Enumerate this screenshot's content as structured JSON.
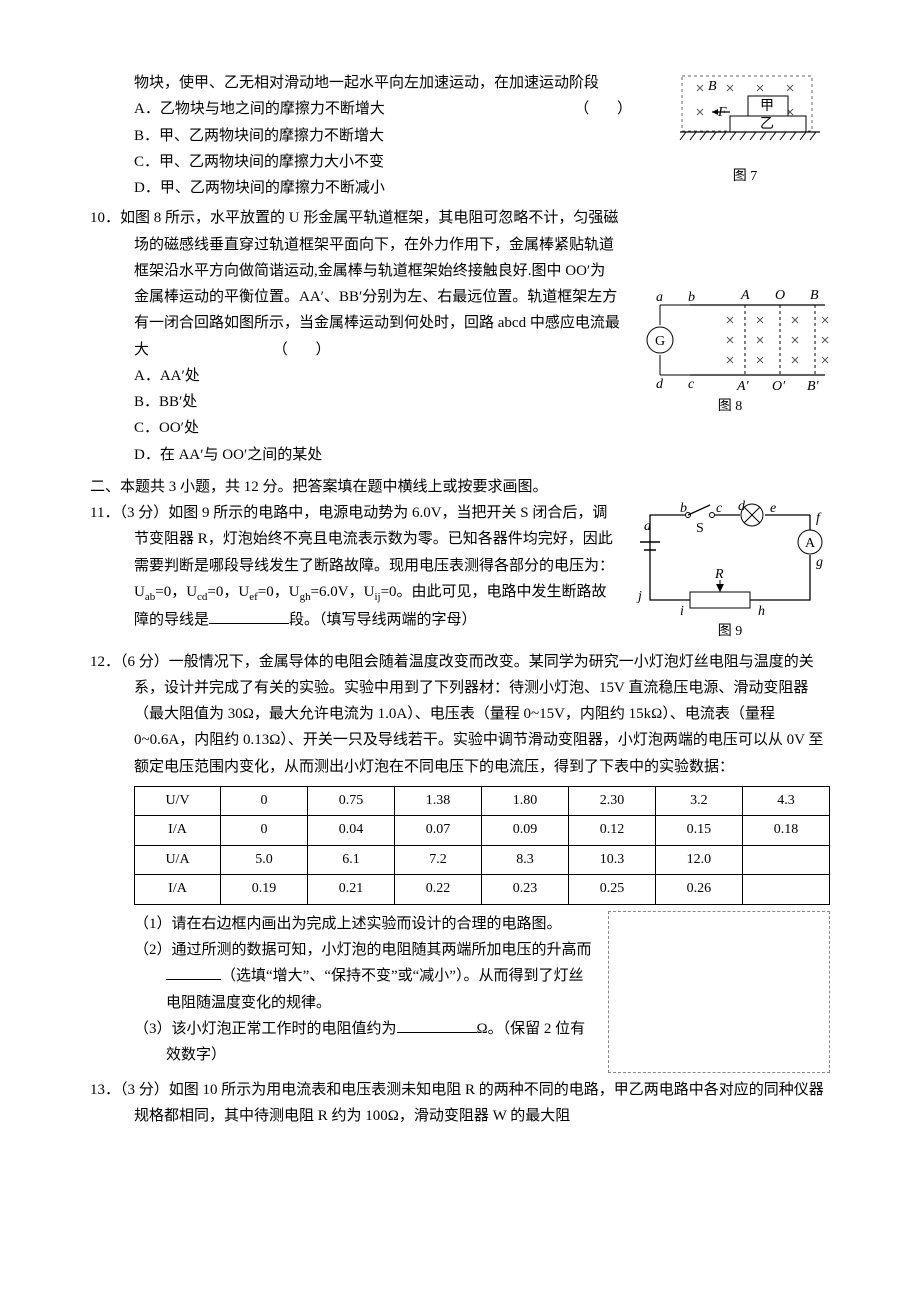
{
  "q9": {
    "cont": "物块，使甲、乙无相对滑动地一起水平向左加速运动，在加速运动阶段",
    "opts": {
      "A": "A．乙物块与地之间的摩擦力不断增大",
      "B": "B．甲、乙两物块间的摩擦力不断增大",
      "C": "C．甲、乙两物块间的摩擦力大小不变",
      "D": "D．甲、乙两物块间的摩擦力不断减小"
    },
    "fig": {
      "caption": "图 7",
      "labels": {
        "B": "B",
        "F": "F",
        "jia": "甲",
        "yi": "乙"
      }
    }
  },
  "q10": {
    "num": "10．",
    "body1": "如图 8 所示，水平放置的 U 形金属平轨道框架，其电阻可忽略不计，匀强磁场的磁感线垂直穿过轨道框架平面向下，在外力作用下，金属棒紧贴轨道框架沿水平方向做简谐运动,金属棒与轨道框架始终接触良好.图中 OO′为金属棒运动的平衡位置。AA′、BB′分别为左、右最远位置。轨道框架左方有一闭合回路如图所示，当金属棒运动到何处时，回路 abcd 中感应电流最大",
    "opts": {
      "A": "A．AA′处",
      "B": "B．BB′处",
      "C": "C．OO′处",
      "D": "D．在 AA′与 OO′之间的某处"
    },
    "fig": {
      "caption": "图 8",
      "labels": {
        "a": "a",
        "b": "b",
        "c": "c",
        "d": "d",
        "A": "A",
        "O": "O",
        "B": "B",
        "Ap": "A′",
        "Op": "O′",
        "Bp": "B′",
        "G": "G"
      }
    }
  },
  "section2": "二、本题共 3 小题，共 12 分。把答案填在题中横线上或按要求画图。",
  "q11": {
    "num": "11．",
    "body": "（3 分）如图 9 所示的电路中，电源电动势为 6.0V，当把开关 S 闭合后，调节变阻器 R，灯泡始终不亮且电流表示数为零。已知各器件均完好，因此需要判断是哪段导线发生了断路故障。现用电压表测得各部分的电压为：U",
    "body2": "=0，U",
    "body3": "=0，",
    "body4": "=0，U",
    "body5": "=6.0V，U",
    "body6": "=0。由此可见，电路中发生断路故障的导线是",
    "body7": "段。（填写导线两端的字母）",
    "subs": {
      "ab": "ab",
      "cd": "cd",
      "ef": "ef",
      "gh": "gh",
      "ij": "ij"
    },
    "U": "U",
    "fig": {
      "caption": "图 9",
      "labels": {
        "a": "a",
        "b": "b",
        "c": "c",
        "d": "d",
        "e": "e",
        "f": "f",
        "g": "g",
        "h": "h",
        "i": "i",
        "j": "j",
        "S": "S",
        "R": "R",
        "A": "A"
      }
    }
  },
  "q12": {
    "num": "12．",
    "body": "（6 分）一般情况下，金属导体的电阻会随着温度改变而改变。某同学为研究一小灯泡灯丝电阻与温度的关系，设计并完成了有关的实验。实验中用到了下列器材：待测小灯泡、15V 直流稳压电源、滑动变阻器（最大阻值为 30Ω，最大允许电流为 1.0A）、电压表（量程 0~15V，内阻约 15kΩ）、电流表（量程 0~0.6A，内阻约 0.13Ω）、开关一只及导线若干。实验中调节滑动变阻器，小灯泡两端的电压可以从 0V 至额定电压范围内变化，从而测出小灯泡在不同电压下的电流压，得到了下表中的实验数据：",
    "table": {
      "headers": [
        "U/V",
        "I/A",
        "U/A",
        "I/A"
      ],
      "rows": [
        [
          "U/V",
          "0",
          "0.75",
          "1.38",
          "1.80",
          "2.30",
          "3.2",
          "4.3"
        ],
        [
          "I/A",
          "0",
          "0.04",
          "0.07",
          "0.09",
          "0.12",
          "0.15",
          "0.18"
        ],
        [
          "U/A",
          "5.0",
          "6.1",
          "7.2",
          "8.3",
          "10.3",
          "12.0",
          ""
        ],
        [
          "I/A",
          "0.19",
          "0.21",
          "0.22",
          "0.23",
          "0.25",
          "0.26",
          ""
        ]
      ]
    },
    "sub1": "（1）请在右边框内画出为完成上述实验而设计的合理的电路图。",
    "sub2a": "（2）通过所测的数据可知，小灯泡的电阻随其两端所加电压的升高而",
    "sub2b": "（选填“增大”、“保持不变”或“减小”）。从而得到了灯丝电阻随温度变化的规律。",
    "sub3a": "（3）该小灯泡正常工作时的电阻值约为",
    "sub3b": "Ω。（保留 2 位有效数字）"
  },
  "q13": {
    "num": "13．",
    "body": "（3 分）如图 10 所示为用电流表和电压表测未知电阻 R 的两种不同的电路，甲乙两电路中各对应的同种仪器规格都相同，其中待测电阻 R 约为 100Ω，滑动变阻器 W 的最大阻"
  },
  "paren": "（    ）"
}
